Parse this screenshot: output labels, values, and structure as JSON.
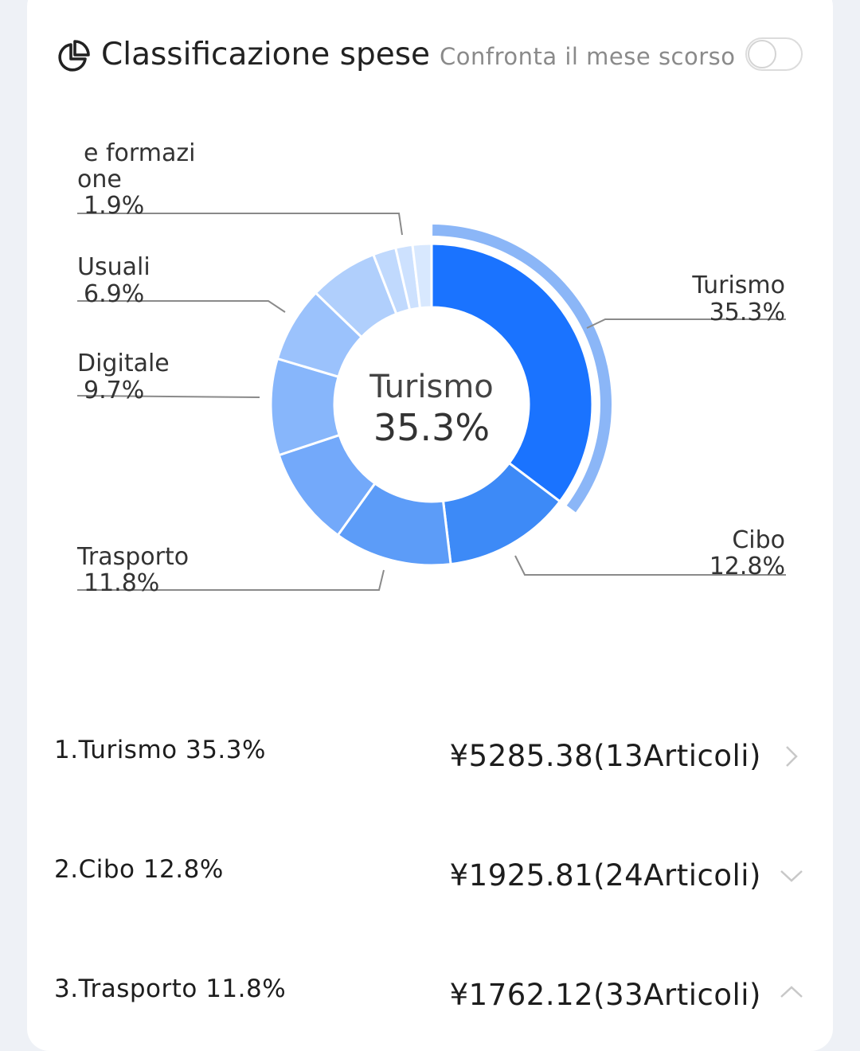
{
  "header": {
    "title": "Classificazione spese",
    "compare_label": "Confronta il mese scorso",
    "compare_enabled": false
  },
  "chart_data": {
    "type": "pie",
    "variant": "donut",
    "center_label": "Turismo",
    "center_value": "35.3%",
    "highlighted": "Turismo",
    "slices": [
      {
        "name": "Turismo",
        "value": 35.3,
        "color": "#1a73ff",
        "label_lines": [
          "Turismo",
          "35.3%"
        ],
        "labeled": true
      },
      {
        "name": "Cibo",
        "value": 12.8,
        "color": "#3d8af7",
        "label_lines": [
          "Cibo",
          "12.8%"
        ],
        "labeled": true
      },
      {
        "name": "Trasporto",
        "value": 11.8,
        "color": "#5c9cf8",
        "label_lines": [
          "Trasporto",
          "11.8%"
        ],
        "labeled": true
      },
      {
        "name": "",
        "value": 10.0,
        "color": "#73a9fa",
        "label_lines": [],
        "labeled": false
      },
      {
        "name": "Digitale",
        "value": 9.7,
        "color": "#87b6fb",
        "label_lines": [
          "Digitale",
          "9.7%"
        ],
        "labeled": true
      },
      {
        "name": "",
        "value": 7.6,
        "color": "#9bc2fc",
        "label_lines": [],
        "labeled": false
      },
      {
        "name": "Usuali",
        "value": 6.9,
        "color": "#b0cffc",
        "label_lines": [
          "Usuali",
          "6.9%"
        ],
        "labeled": true
      },
      {
        "name": "",
        "value": 2.3,
        "color": "#c0d9fd",
        "label_lines": [],
        "labeled": false
      },
      {
        "name": "",
        "value": 1.7,
        "color": "#cde1fe",
        "label_lines": [],
        "labeled": false
      },
      {
        "name": "e formazione",
        "value": 1.9,
        "color": "#d8e8fe",
        "label_lines": [
          "e formazi",
          "one",
          "1.9%"
        ],
        "labeled": true
      }
    ]
  },
  "list": {
    "items": [
      {
        "rank_label": "1.Turismo 35.3%",
        "amount": "¥5285.38(13Articoli)",
        "chevron": "right"
      },
      {
        "rank_label": "2.Cibo 12.8%",
        "amount": "¥1925.81(24Articoli)",
        "chevron": "down"
      },
      {
        "rank_label": "3.Trasporto 11.8%",
        "amount": "¥1762.12(33Articoli)",
        "chevron": "up"
      }
    ]
  },
  "icons": {
    "header_icon": "pie-chart-icon",
    "row_chevrons": [
      "chevron-right-icon",
      "chevron-down-icon",
      "chevron-up-icon"
    ]
  }
}
